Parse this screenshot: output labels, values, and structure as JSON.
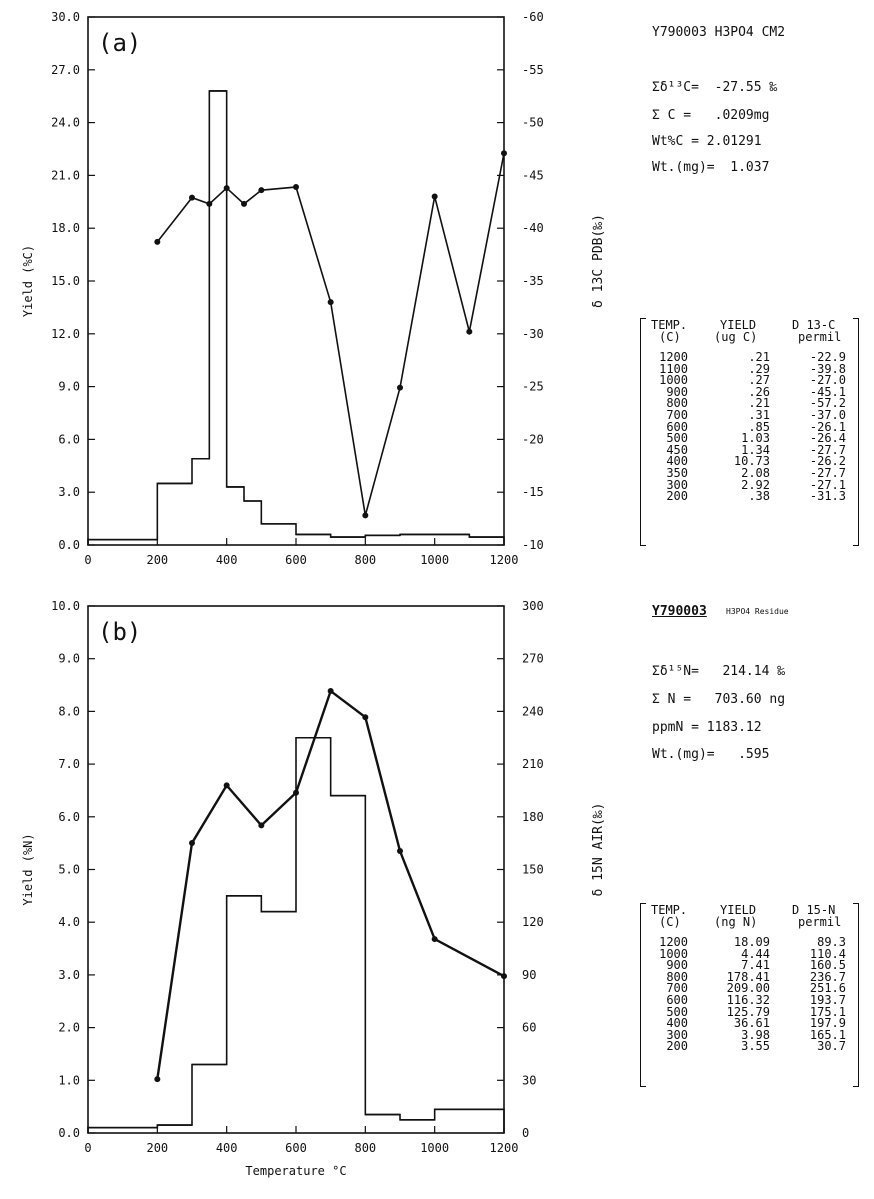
{
  "chart_data": [
    {
      "type": "line",
      "panel_label": "(a)",
      "xlim": [
        0,
        1200
      ],
      "x_ticks": [
        "0",
        "200",
        "400",
        "600",
        "800",
        "1000",
        "1200"
      ],
      "ylabel_left": "Yield (%C)",
      "ylim_left": [
        0,
        30
      ],
      "y_ticks_left": [
        "0.0",
        "3.0",
        "6.0",
        "9.0",
        "12.0",
        "15.0",
        "18.0",
        "21.0",
        "24.0",
        "27.0",
        "30.0"
      ],
      "ylabel_right": "δ 13C PDB(‰)",
      "ylim_right": [
        -60,
        -10
      ],
      "y_ticks_right": [
        "-10",
        "-15",
        "-20",
        "-25",
        "-30",
        "-35",
        "-40",
        "-45",
        "-50",
        "-55",
        "-60"
      ],
      "yield_steps": [
        {
          "x0": 0,
          "x1": 200,
          "y": 0.3
        },
        {
          "x0": 200,
          "x1": 300,
          "y": 3.5
        },
        {
          "x0": 300,
          "x1": 350,
          "y": 4.9
        },
        {
          "x0": 350,
          "x1": 400,
          "y": 25.8
        },
        {
          "x0": 400,
          "x1": 450,
          "y": 3.3
        },
        {
          "x0": 450,
          "x1": 500,
          "y": 2.5
        },
        {
          "x0": 500,
          "x1": 600,
          "y": 1.2
        },
        {
          "x0": 600,
          "x1": 700,
          "y": 0.6
        },
        {
          "x0": 700,
          "x1": 800,
          "y": 0.45
        },
        {
          "x0": 800,
          "x1": 900,
          "y": 0.55
        },
        {
          "x0": 900,
          "x1": 1000,
          "y": 0.6
        },
        {
          "x0": 1000,
          "x1": 1100,
          "y": 0.6
        },
        {
          "x0": 1100,
          "x1": 1200,
          "y": 0.45
        }
      ],
      "delta_series": {
        "x": [
          200,
          300,
          350,
          400,
          450,
          500,
          600,
          700,
          800,
          900,
          1000,
          1100,
          1200
        ],
        "y": [
          -31.3,
          -27.1,
          -27.7,
          -26.2,
          -27.7,
          -26.4,
          -26.1,
          -37.0,
          -57.2,
          -45.1,
          -27.0,
          -39.8,
          -22.9
        ]
      }
    },
    {
      "type": "line",
      "panel_label": "(b)",
      "xlim": [
        0,
        1200
      ],
      "x_ticks": [
        "0",
        "200",
        "400",
        "600",
        "800",
        "1000",
        "1200"
      ],
      "xlabel": "Temperature °C",
      "ylabel_left": "Yield (%N)",
      "ylim_left": [
        0,
        10
      ],
      "y_ticks_left": [
        "0.0",
        "1.0",
        "2.0",
        "3.0",
        "4.0",
        "5.0",
        "6.0",
        "7.0",
        "8.0",
        "9.0",
        "10.0"
      ],
      "ylabel_right": "δ 15N AIR(‰)",
      "ylim_right": [
        0,
        300
      ],
      "y_ticks_right": [
        "0",
        "30",
        "60",
        "90",
        "120",
        "150",
        "180",
        "210",
        "240",
        "270",
        "300"
      ],
      "yield_steps": [
        {
          "x0": 0,
          "x1": 200,
          "y": 0.1
        },
        {
          "x0": 200,
          "x1": 300,
          "y": 0.15
        },
        {
          "x0": 300,
          "x1": 400,
          "y": 1.3
        },
        {
          "x0": 400,
          "x1": 500,
          "y": 4.5
        },
        {
          "x0": 500,
          "x1": 600,
          "y": 4.2
        },
        {
          "x0": 600,
          "x1": 700,
          "y": 7.5
        },
        {
          "x0": 700,
          "x1": 800,
          "y": 6.4
        },
        {
          "x0": 800,
          "x1": 900,
          "y": 0.35
        },
        {
          "x0": 900,
          "x1": 1000,
          "y": 0.25
        },
        {
          "x0": 1000,
          "x1": 1200,
          "y": 0.45
        }
      ],
      "delta_series": {
        "x": [
          200,
          300,
          400,
          500,
          600,
          700,
          800,
          900,
          1000,
          1200
        ],
        "y": [
          30.7,
          165.1,
          197.9,
          175.1,
          193.7,
          251.6,
          236.7,
          160.5,
          110.4,
          89.3
        ]
      }
    }
  ],
  "info_a": {
    "sample": "Y790003 H3PO4 CM2",
    "sum_delta": "Σδ¹³C=  -27.55 ‰",
    "sum_c": "Σ C =   .0209mg",
    "wt_pct": "Wt%C = 2.01291",
    "wt_mg": "Wt.(mg)=  1.037",
    "table": {
      "headers": [
        "TEMP.",
        "(C)",
        "YIELD",
        "(ug C)",
        "D 13-C",
        "permil"
      ],
      "temp": [
        "1200",
        "1100",
        "1000",
        "900",
        "800",
        "700",
        "600",
        "500",
        "450",
        "400",
        "350",
        "300",
        "200"
      ],
      "yield": [
        ".21",
        ".29",
        ".27",
        ".26",
        ".21",
        ".31",
        ".85",
        "1.03",
        "1.34",
        "10.73",
        "2.08",
        "2.92",
        ".38"
      ],
      "delta": [
        "-22.9",
        "-39.8",
        "-27.0",
        "-45.1",
        "-57.2",
        "-37.0",
        "-26.1",
        "-26.4",
        "-27.7",
        "-26.2",
        "-27.7",
        "-27.1",
        "-31.3"
      ]
    }
  },
  "info_b": {
    "sample": "Y790003",
    "sample_sub": "H3PO4 Residue",
    "sum_delta": "Σδ¹⁵N=   214.14 ‰",
    "sum_n": "Σ N =   703.60 ng",
    "ppm": "ppmN = 1183.12",
    "wt_mg": "Wt.(mg)=   .595",
    "table": {
      "headers": [
        "TEMP.",
        "(C)",
        "YIELD",
        "(ng N)",
        "D 15-N",
        "permil"
      ],
      "temp": [
        "1200",
        "1000",
        "900",
        "800",
        "700",
        "600",
        "500",
        "400",
        "300",
        "200"
      ],
      "yield": [
        "18.09",
        "4.44",
        "7.41",
        "178.41",
        "209.00",
        "116.32",
        "125.79",
        "36.61",
        "3.98",
        "3.55"
      ],
      "delta": [
        "89.3",
        "110.4",
        "160.5",
        "236.7",
        "251.6",
        "193.7",
        "175.1",
        "197.9",
        "165.1",
        "30.7"
      ]
    }
  }
}
